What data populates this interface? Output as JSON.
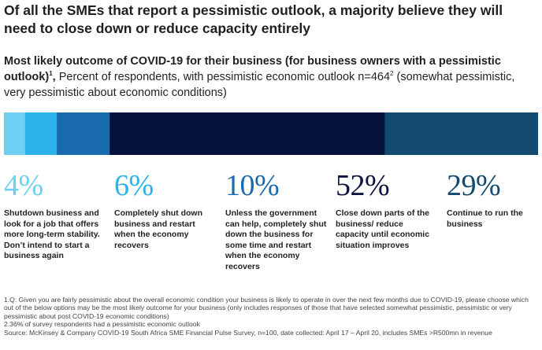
{
  "headline": "Of all the SMEs that report a pessimistic outlook, a majority believe they will need to close down or reduce capacity entirely",
  "subtitle": {
    "bold_text": "Most likely outcome of COVID-19 for their business (for business owners with a pessimistic outlook)",
    "bold_sup": "1",
    "bold_tail": ",",
    "line_text": "Percent of respondents, with pessimistic economic outlook n=464",
    "line_sup": "2",
    "line_tail": " (somewhat pessimistic, very pessimistic about economic conditions)"
  },
  "chart_data": {
    "type": "bar",
    "orientation": "horizontal-stacked",
    "title": "Most likely outcome of COVID-19 for their business",
    "unit": "%",
    "categories": [
      "Shutdown business and look for a job that offers more long-term stability. Don’t intend to start a business again",
      "Completely shut down business and restart when the economy recovers",
      "Unless the government can help, completely shut down the business for some time and restart when the economy recovers",
      "Close down parts of the business/ reduce capacity until economic situation improves",
      "Continue to run the business"
    ],
    "values": [
      4,
      6,
      10,
      52,
      29
    ],
    "value_labels": [
      "4%",
      "6%",
      "10%",
      "52%",
      "29%"
    ],
    "colors": [
      "#6fcff2",
      "#2cb3ec",
      "#1a6bae",
      "#04113a",
      "#124a70"
    ],
    "label_colors": [
      "#6fcff2",
      "#2cb3ec",
      "#1a6bae",
      "#0b1540",
      "#124a70"
    ]
  },
  "footnotes": [
    "1.Q: Given you are fairly pessimistic about the overall economic condition your business is likely to operate in over the next few months due to COVID-19, please choose which out of the below options may be the most likely outcome for your business (only includes responses of those that have selected somewhat pessimistic, pessimistic or very pessimistic about post COVID-19 economic conditions)",
    "2.36% of survey respondents had a pessimistic economic outlook",
    "Source: McKinsey & Company COVID-19 South Africa SME Financial Pulse Survey, n=100, date collected: April 17 – April 20, includes SMEs >R500mn in revenue"
  ]
}
